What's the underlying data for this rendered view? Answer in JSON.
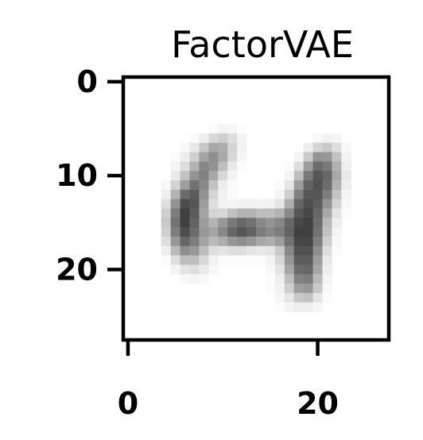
{
  "chart_data": {
    "type": "heatmap",
    "title": "FactorVAE",
    "xlabel": "",
    "ylabel": "",
    "colormap": "Greys",
    "xlim": [
      -0.5,
      27.5
    ],
    "ylim": [
      27.5,
      -0.5
    ],
    "x_ticks": [
      0,
      20
    ],
    "y_ticks": [
      0,
      10,
      20
    ],
    "x_tick_labels": [
      "0",
      "20"
    ],
    "y_tick_labels": [
      "0",
      "10",
      "20"
    ],
    "grid": false,
    "image_size": [
      28,
      28
    ],
    "values": [
      [
        0,
        0,
        0,
        0,
        0,
        0,
        0,
        0,
        0,
        0,
        0,
        0,
        0,
        0,
        0,
        0,
        0,
        0,
        0,
        0,
        0,
        0,
        0,
        0,
        0,
        0,
        0,
        0
      ],
      [
        0,
        0,
        0,
        0,
        0,
        0,
        0,
        0,
        0,
        0,
        0,
        0,
        0,
        0,
        0,
        0,
        0,
        0,
        0,
        0,
        0,
        0,
        0,
        0,
        0,
        0,
        0,
        0
      ],
      [
        0,
        0,
        0,
        0,
        0,
        0,
        0,
        0,
        0,
        0,
        0,
        0,
        0,
        0,
        0,
        0,
        0,
        0,
        0,
        0,
        0,
        0,
        0,
        0,
        0,
        0,
        0,
        0
      ],
      [
        0,
        0,
        0,
        0,
        0,
        0,
        0,
        0,
        0,
        0,
        0,
        0,
        0,
        0,
        0,
        0,
        0,
        0,
        0,
        0,
        0,
        0,
        0,
        0,
        0,
        0,
        0,
        0
      ],
      [
        0,
        0,
        0,
        0,
        0,
        0,
        0,
        0,
        0,
        0,
        0,
        0,
        0,
        0,
        0,
        0,
        0,
        0,
        0,
        0,
        0,
        0,
        0,
        0,
        0,
        0,
        0,
        0
      ],
      [
        0,
        0,
        0,
        0,
        0,
        0,
        0,
        0,
        0,
        0.02,
        0.05,
        0.04,
        0.01,
        0,
        0,
        0,
        0,
        0,
        0,
        0,
        0,
        0,
        0,
        0,
        0,
        0,
        0,
        0
      ],
      [
        0,
        0,
        0,
        0,
        0,
        0,
        0,
        0.02,
        0.08,
        0.18,
        0.22,
        0.15,
        0.05,
        0,
        0,
        0,
        0,
        0,
        0,
        0,
        0.03,
        0.06,
        0.04,
        0,
        0,
        0,
        0,
        0
      ],
      [
        0,
        0,
        0,
        0,
        0,
        0,
        0.03,
        0.1,
        0.25,
        0.4,
        0.38,
        0.2,
        0.06,
        0,
        0,
        0,
        0,
        0,
        0,
        0.08,
        0.2,
        0.25,
        0.15,
        0.03,
        0,
        0,
        0,
        0
      ],
      [
        0,
        0,
        0,
        0,
        0,
        0.02,
        0.08,
        0.22,
        0.42,
        0.52,
        0.4,
        0.18,
        0.04,
        0,
        0,
        0,
        0,
        0,
        0.05,
        0.25,
        0.5,
        0.48,
        0.28,
        0.06,
        0,
        0,
        0,
        0
      ],
      [
        0,
        0,
        0,
        0,
        0,
        0.05,
        0.15,
        0.35,
        0.55,
        0.5,
        0.3,
        0.1,
        0.02,
        0,
        0,
        0,
        0,
        0.02,
        0.15,
        0.45,
        0.68,
        0.62,
        0.35,
        0.08,
        0,
        0,
        0,
        0
      ],
      [
        0,
        0,
        0,
        0,
        0,
        0.1,
        0.28,
        0.5,
        0.58,
        0.4,
        0.18,
        0.05,
        0,
        0,
        0,
        0,
        0,
        0.05,
        0.3,
        0.62,
        0.78,
        0.7,
        0.4,
        0.1,
        0,
        0,
        0,
        0
      ],
      [
        0,
        0,
        0,
        0,
        0.03,
        0.2,
        0.45,
        0.65,
        0.55,
        0.28,
        0.08,
        0.02,
        0,
        0,
        0,
        0,
        0.02,
        0.12,
        0.45,
        0.72,
        0.8,
        0.68,
        0.35,
        0.08,
        0,
        0,
        0,
        0
      ],
      [
        0,
        0,
        0,
        0,
        0.08,
        0.35,
        0.68,
        0.75,
        0.5,
        0.2,
        0.06,
        0.02,
        0,
        0,
        0,
        0,
        0.05,
        0.22,
        0.58,
        0.78,
        0.78,
        0.6,
        0.28,
        0.05,
        0,
        0,
        0,
        0
      ],
      [
        0,
        0,
        0,
        0,
        0.15,
        0.5,
        0.82,
        0.78,
        0.45,
        0.15,
        0.06,
        0.05,
        0.06,
        0.06,
        0.05,
        0.06,
        0.12,
        0.38,
        0.7,
        0.82,
        0.75,
        0.5,
        0.2,
        0.03,
        0,
        0,
        0,
        0
      ],
      [
        0,
        0,
        0,
        0,
        0.22,
        0.6,
        0.88,
        0.75,
        0.42,
        0.2,
        0.18,
        0.28,
        0.35,
        0.35,
        0.3,
        0.3,
        0.35,
        0.55,
        0.78,
        0.85,
        0.7,
        0.4,
        0.12,
        0.02,
        0,
        0,
        0,
        0
      ],
      [
        0,
        0,
        0,
        0,
        0.25,
        0.65,
        0.88,
        0.72,
        0.45,
        0.35,
        0.48,
        0.62,
        0.7,
        0.65,
        0.55,
        0.5,
        0.55,
        0.7,
        0.85,
        0.88,
        0.68,
        0.32,
        0.08,
        0,
        0,
        0,
        0,
        0
      ],
      [
        0,
        0,
        0,
        0,
        0.22,
        0.6,
        0.82,
        0.68,
        0.48,
        0.42,
        0.55,
        0.7,
        0.78,
        0.72,
        0.6,
        0.55,
        0.6,
        0.72,
        0.88,
        0.88,
        0.65,
        0.28,
        0.05,
        0,
        0,
        0,
        0,
        0
      ],
      [
        0,
        0,
        0,
        0,
        0.15,
        0.48,
        0.7,
        0.6,
        0.42,
        0.32,
        0.38,
        0.48,
        0.52,
        0.48,
        0.4,
        0.38,
        0.45,
        0.65,
        0.85,
        0.85,
        0.6,
        0.22,
        0.03,
        0,
        0,
        0,
        0,
        0
      ],
      [
        0,
        0,
        0,
        0,
        0.08,
        0.32,
        0.52,
        0.48,
        0.3,
        0.15,
        0.12,
        0.15,
        0.15,
        0.12,
        0.1,
        0.12,
        0.25,
        0.55,
        0.8,
        0.8,
        0.52,
        0.15,
        0.02,
        0,
        0,
        0,
        0,
        0
      ],
      [
        0,
        0,
        0,
        0,
        0.02,
        0.15,
        0.3,
        0.3,
        0.18,
        0.06,
        0.02,
        0.02,
        0.02,
        0.02,
        0.02,
        0.05,
        0.18,
        0.48,
        0.75,
        0.75,
        0.45,
        0.1,
        0,
        0,
        0,
        0,
        0,
        0
      ],
      [
        0,
        0,
        0,
        0,
        0,
        0.05,
        0.12,
        0.15,
        0.1,
        0.03,
        0,
        0,
        0,
        0,
        0,
        0.03,
        0.12,
        0.4,
        0.68,
        0.7,
        0.4,
        0.08,
        0,
        0,
        0,
        0,
        0,
        0
      ],
      [
        0,
        0,
        0,
        0,
        0,
        0,
        0.03,
        0.05,
        0.03,
        0,
        0,
        0,
        0,
        0,
        0,
        0.02,
        0.08,
        0.3,
        0.58,
        0.6,
        0.32,
        0.05,
        0,
        0,
        0,
        0,
        0,
        0
      ],
      [
        0,
        0,
        0,
        0,
        0,
        0,
        0,
        0,
        0,
        0,
        0,
        0,
        0,
        0,
        0,
        0.02,
        0.06,
        0.22,
        0.45,
        0.48,
        0.25,
        0.03,
        0,
        0,
        0,
        0,
        0,
        0
      ],
      [
        0,
        0,
        0,
        0,
        0,
        0,
        0,
        0,
        0,
        0,
        0,
        0,
        0,
        0,
        0,
        0,
        0.04,
        0.12,
        0.25,
        0.28,
        0.12,
        0.02,
        0,
        0,
        0,
        0,
        0,
        0
      ],
      [
        0,
        0,
        0,
        0,
        0,
        0,
        0,
        0,
        0,
        0,
        0,
        0,
        0,
        0,
        0,
        0,
        0.02,
        0.05,
        0.08,
        0.08,
        0.04,
        0,
        0,
        0,
        0,
        0,
        0,
        0
      ],
      [
        0,
        0,
        0,
        0,
        0,
        0,
        0,
        0,
        0,
        0,
        0,
        0,
        0,
        0,
        0,
        0,
        0,
        0,
        0,
        0,
        0,
        0,
        0,
        0,
        0,
        0,
        0,
        0
      ],
      [
        0,
        0,
        0,
        0,
        0,
        0,
        0,
        0,
        0,
        0,
        0,
        0,
        0,
        0,
        0,
        0,
        0,
        0,
        0,
        0,
        0,
        0,
        0,
        0,
        0,
        0,
        0,
        0
      ],
      [
        0,
        0,
        0,
        0,
        0,
        0,
        0,
        0,
        0,
        0,
        0,
        0,
        0,
        0,
        0,
        0,
        0,
        0,
        0,
        0,
        0,
        0,
        0,
        0,
        0,
        0,
        0,
        0
      ]
    ]
  }
}
